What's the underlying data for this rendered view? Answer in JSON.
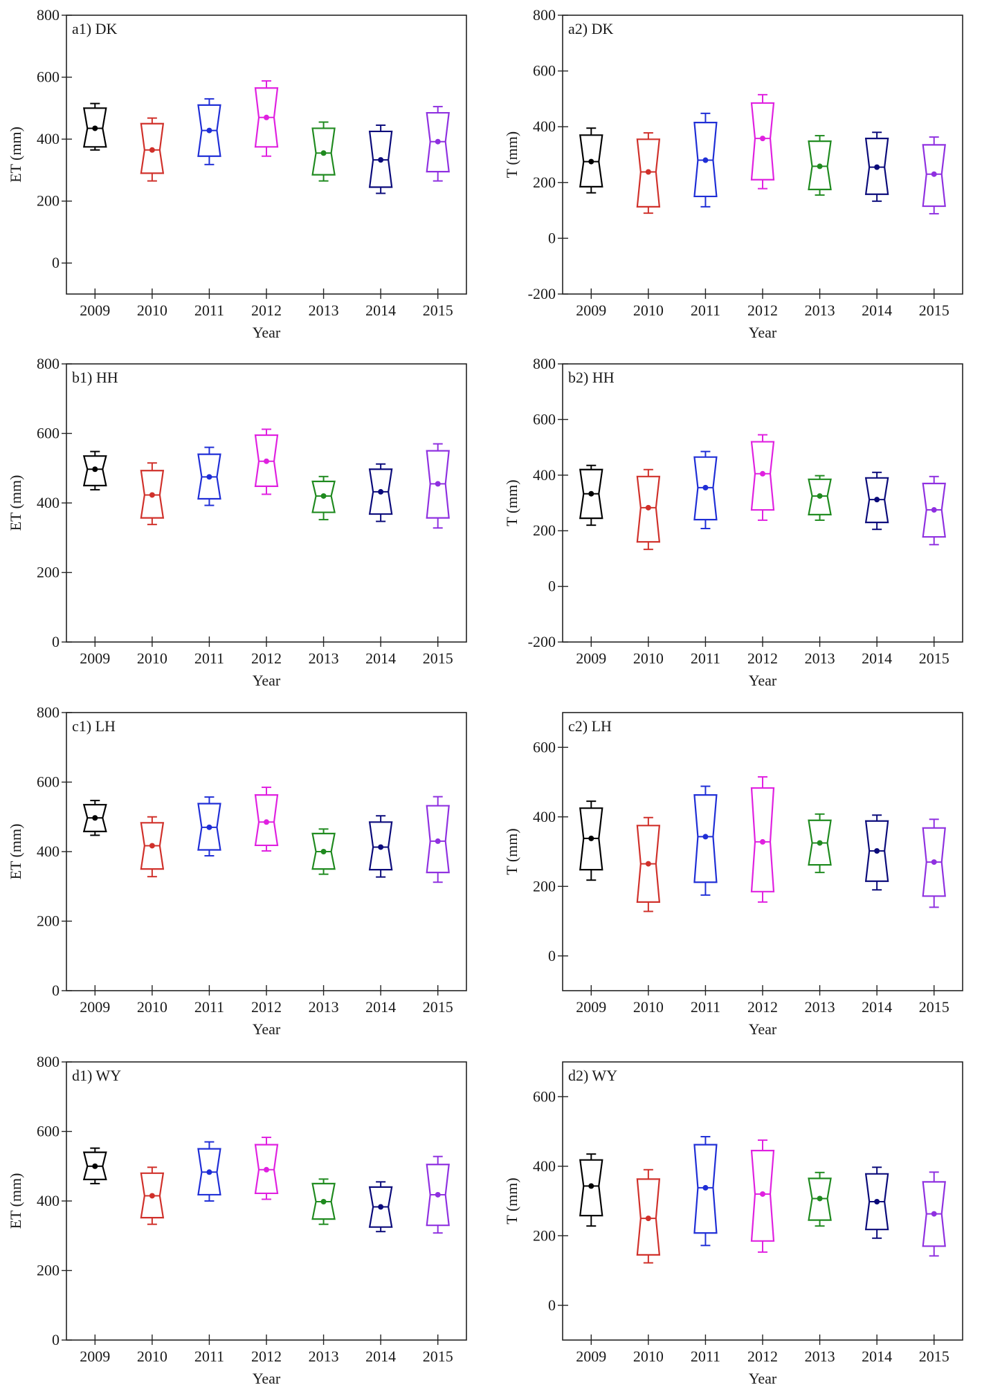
{
  "figure": {
    "colors": [
      "#000000",
      "#d0302a",
      "#1f2ed6",
      "#e020e0",
      "#1f8a1f",
      "#0a0a7a",
      "#8f30e0"
    ]
  },
  "chart_data": [
    {
      "type": "box",
      "panel": "a1) DK",
      "xlabel": "Year",
      "ylabel": "ET (mm)",
      "ylim": [
        -100,
        800
      ],
      "yticks": [
        0,
        200,
        400,
        600,
        800
      ],
      "categories": [
        "2009",
        "2010",
        "2011",
        "2012",
        "2013",
        "2014",
        "2015"
      ],
      "boxes": [
        {
          "whisker_low": 365,
          "q1": 375,
          "median": 435,
          "q3": 500,
          "whisker_high": 515
        },
        {
          "whisker_low": 265,
          "q1": 290,
          "median": 365,
          "q3": 450,
          "whisker_high": 468
        },
        {
          "whisker_low": 318,
          "q1": 345,
          "median": 428,
          "q3": 510,
          "whisker_high": 530
        },
        {
          "whisker_low": 345,
          "q1": 375,
          "median": 470,
          "q3": 565,
          "whisker_high": 588
        },
        {
          "whisker_low": 265,
          "q1": 285,
          "median": 355,
          "q3": 435,
          "whisker_high": 455
        },
        {
          "whisker_low": 225,
          "q1": 245,
          "median": 333,
          "q3": 425,
          "whisker_high": 445
        },
        {
          "whisker_low": 265,
          "q1": 295,
          "median": 392,
          "q3": 485,
          "whisker_high": 505
        }
      ]
    },
    {
      "type": "box",
      "panel": "a2) DK",
      "xlabel": "Year",
      "ylabel": "T (mm)",
      "ylim": [
        -200,
        800
      ],
      "yticks": [
        -200,
        0,
        200,
        400,
        600,
        800
      ],
      "categories": [
        "2009",
        "2010",
        "2011",
        "2012",
        "2013",
        "2014",
        "2015"
      ],
      "boxes": [
        {
          "whisker_low": 163,
          "q1": 185,
          "median": 275,
          "q3": 370,
          "whisker_high": 395
        },
        {
          "whisker_low": 90,
          "q1": 113,
          "median": 238,
          "q3": 355,
          "whisker_high": 378
        },
        {
          "whisker_low": 113,
          "q1": 150,
          "median": 280,
          "q3": 415,
          "whisker_high": 448
        },
        {
          "whisker_low": 178,
          "q1": 210,
          "median": 358,
          "q3": 485,
          "whisker_high": 515
        },
        {
          "whisker_low": 155,
          "q1": 175,
          "median": 258,
          "q3": 348,
          "whisker_high": 368
        },
        {
          "whisker_low": 133,
          "q1": 158,
          "median": 255,
          "q3": 358,
          "whisker_high": 380
        },
        {
          "whisker_low": 88,
          "q1": 115,
          "median": 230,
          "q3": 335,
          "whisker_high": 363
        }
      ]
    },
    {
      "type": "box",
      "panel": "b1) HH",
      "xlabel": "Year",
      "ylabel": "ET (mm)",
      "ylim": [
        0,
        800
      ],
      "yticks": [
        0,
        200,
        400,
        600,
        800
      ],
      "categories": [
        "2009",
        "2010",
        "2011",
        "2012",
        "2013",
        "2014",
        "2015"
      ],
      "boxes": [
        {
          "whisker_low": 438,
          "q1": 450,
          "median": 497,
          "q3": 535,
          "whisker_high": 548
        },
        {
          "whisker_low": 338,
          "q1": 357,
          "median": 423,
          "q3": 493,
          "whisker_high": 515
        },
        {
          "whisker_low": 393,
          "q1": 412,
          "median": 475,
          "q3": 540,
          "whisker_high": 560
        },
        {
          "whisker_low": 425,
          "q1": 448,
          "median": 520,
          "q3": 595,
          "whisker_high": 612
        },
        {
          "whisker_low": 352,
          "q1": 373,
          "median": 420,
          "q3": 462,
          "whisker_high": 476
        },
        {
          "whisker_low": 347,
          "q1": 368,
          "median": 432,
          "q3": 497,
          "whisker_high": 512
        },
        {
          "whisker_low": 328,
          "q1": 357,
          "median": 455,
          "q3": 550,
          "whisker_high": 570
        }
      ]
    },
    {
      "type": "box",
      "panel": "b2) HH",
      "xlabel": "Year",
      "ylabel": "T (mm)",
      "ylim": [
        -200,
        800
      ],
      "yticks": [
        -200,
        0,
        200,
        400,
        600,
        800
      ],
      "categories": [
        "2009",
        "2010",
        "2011",
        "2012",
        "2013",
        "2014",
        "2015"
      ],
      "boxes": [
        {
          "whisker_low": 220,
          "q1": 245,
          "median": 333,
          "q3": 420,
          "whisker_high": 435
        },
        {
          "whisker_low": 133,
          "q1": 160,
          "median": 283,
          "q3": 395,
          "whisker_high": 420
        },
        {
          "whisker_low": 208,
          "q1": 240,
          "median": 355,
          "q3": 465,
          "whisker_high": 485
        },
        {
          "whisker_low": 238,
          "q1": 275,
          "median": 405,
          "q3": 520,
          "whisker_high": 545
        },
        {
          "whisker_low": 238,
          "q1": 258,
          "median": 325,
          "q3": 385,
          "whisker_high": 398
        },
        {
          "whisker_low": 205,
          "q1": 230,
          "median": 312,
          "q3": 390,
          "whisker_high": 410
        },
        {
          "whisker_low": 150,
          "q1": 178,
          "median": 275,
          "q3": 370,
          "whisker_high": 395
        }
      ]
    },
    {
      "type": "box",
      "panel": "c1) LH",
      "xlabel": "Year",
      "ylabel": "ET (mm)",
      "ylim": [
        0,
        800
      ],
      "yticks": [
        0,
        200,
        400,
        600,
        800
      ],
      "categories": [
        "2009",
        "2010",
        "2011",
        "2012",
        "2013",
        "2014",
        "2015"
      ],
      "boxes": [
        {
          "whisker_low": 447,
          "q1": 458,
          "median": 497,
          "q3": 535,
          "whisker_high": 547
        },
        {
          "whisker_low": 328,
          "q1": 350,
          "median": 417,
          "q3": 483,
          "whisker_high": 500
        },
        {
          "whisker_low": 388,
          "q1": 405,
          "median": 470,
          "q3": 538,
          "whisker_high": 557
        },
        {
          "whisker_low": 402,
          "q1": 418,
          "median": 485,
          "q3": 563,
          "whisker_high": 585
        },
        {
          "whisker_low": 335,
          "q1": 350,
          "median": 400,
          "q3": 452,
          "whisker_high": 465
        },
        {
          "whisker_low": 327,
          "q1": 348,
          "median": 413,
          "q3": 485,
          "whisker_high": 503
        },
        {
          "whisker_low": 312,
          "q1": 340,
          "median": 430,
          "q3": 532,
          "whisker_high": 558
        }
      ]
    },
    {
      "type": "box",
      "panel": "c2) LH",
      "xlabel": "Year",
      "ylabel": "T (mm)",
      "ylim": [
        -100,
        700
      ],
      "yticks": [
        0,
        200,
        400,
        600
      ],
      "categories": [
        "2009",
        "2010",
        "2011",
        "2012",
        "2013",
        "2014",
        "2015"
      ],
      "boxes": [
        {
          "whisker_low": 218,
          "q1": 248,
          "median": 338,
          "q3": 425,
          "whisker_high": 445
        },
        {
          "whisker_low": 128,
          "q1": 155,
          "median": 265,
          "q3": 375,
          "whisker_high": 398
        },
        {
          "whisker_low": 175,
          "q1": 212,
          "median": 343,
          "q3": 463,
          "whisker_high": 488
        },
        {
          "whisker_low": 155,
          "q1": 185,
          "median": 328,
          "q3": 483,
          "whisker_high": 515
        },
        {
          "whisker_low": 240,
          "q1": 262,
          "median": 325,
          "q3": 390,
          "whisker_high": 408
        },
        {
          "whisker_low": 190,
          "q1": 215,
          "median": 302,
          "q3": 388,
          "whisker_high": 405
        },
        {
          "whisker_low": 140,
          "q1": 172,
          "median": 270,
          "q3": 368,
          "whisker_high": 393
        }
      ]
    },
    {
      "type": "box",
      "panel": "d1) WY",
      "xlabel": "Year",
      "ylabel": "ET (mm)",
      "ylim": [
        0,
        800
      ],
      "yticks": [
        0,
        200,
        400,
        600,
        800
      ],
      "categories": [
        "2009",
        "2010",
        "2011",
        "2012",
        "2013",
        "2014",
        "2015"
      ],
      "boxes": [
        {
          "whisker_low": 450,
          "q1": 462,
          "median": 500,
          "q3": 540,
          "whisker_high": 552
        },
        {
          "whisker_low": 333,
          "q1": 352,
          "median": 415,
          "q3": 480,
          "whisker_high": 497
        },
        {
          "whisker_low": 400,
          "q1": 418,
          "median": 483,
          "q3": 550,
          "whisker_high": 570
        },
        {
          "whisker_low": 405,
          "q1": 422,
          "median": 490,
          "q3": 562,
          "whisker_high": 583
        },
        {
          "whisker_low": 333,
          "q1": 348,
          "median": 398,
          "q3": 450,
          "whisker_high": 463
        },
        {
          "whisker_low": 312,
          "q1": 325,
          "median": 383,
          "q3": 440,
          "whisker_high": 455
        },
        {
          "whisker_low": 308,
          "q1": 330,
          "median": 418,
          "q3": 505,
          "whisker_high": 528
        }
      ]
    },
    {
      "type": "box",
      "panel": "d2) WY",
      "xlabel": "Year",
      "ylabel": "T (mm)",
      "ylim": [
        -100,
        700
      ],
      "yticks": [
        0,
        200,
        400,
        600
      ],
      "categories": [
        "2009",
        "2010",
        "2011",
        "2012",
        "2013",
        "2014",
        "2015"
      ],
      "boxes": [
        {
          "whisker_low": 228,
          "q1": 258,
          "median": 343,
          "q3": 418,
          "whisker_high": 435
        },
        {
          "whisker_low": 122,
          "q1": 145,
          "median": 250,
          "q3": 363,
          "whisker_high": 390
        },
        {
          "whisker_low": 172,
          "q1": 208,
          "median": 338,
          "q3": 462,
          "whisker_high": 485
        },
        {
          "whisker_low": 153,
          "q1": 185,
          "median": 320,
          "q3": 445,
          "whisker_high": 475
        },
        {
          "whisker_low": 228,
          "q1": 245,
          "median": 307,
          "q3": 365,
          "whisker_high": 382
        },
        {
          "whisker_low": 193,
          "q1": 218,
          "median": 298,
          "q3": 378,
          "whisker_high": 397
        },
        {
          "whisker_low": 142,
          "q1": 170,
          "median": 263,
          "q3": 355,
          "whisker_high": 383
        }
      ]
    }
  ]
}
